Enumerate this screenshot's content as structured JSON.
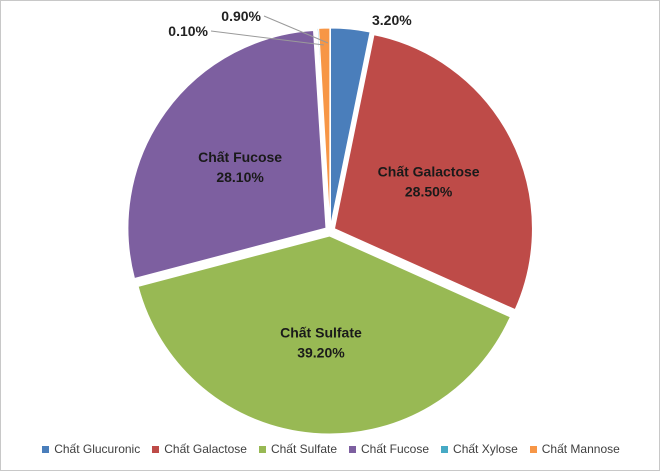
{
  "chart_data": {
    "type": "pie",
    "title": "",
    "categories": [
      "Chất Glucuronic",
      "Chất Galactose",
      "Chất Sulfate",
      "Chất Fucose",
      "Chất Xylose",
      "Chất Mannose"
    ],
    "values": [
      3.2,
      28.5,
      39.2,
      28.1,
      0.1,
      0.9
    ],
    "data_labels": [
      "3.20%",
      "28.50%",
      "39.20%",
      "28.10%",
      "0.10%",
      "0.90%"
    ],
    "colors": [
      "#4a7ebb",
      "#be4b48",
      "#98b954",
      "#7d5fa0",
      "#46aac5",
      "#f79646"
    ],
    "start_angle_deg": 0,
    "direction": "clockwise",
    "legend_position": "bottom",
    "inside_labels": [
      {
        "index": 1,
        "name": "Chất Galactose",
        "value": "28.50%"
      },
      {
        "index": 2,
        "name": "Chất Sulfate",
        "value": "39.20%"
      },
      {
        "index": 3,
        "name": "Chất Fucose",
        "value": "28.10%"
      }
    ],
    "outside_labels": [
      {
        "index": 0,
        "value": "3.20%"
      },
      {
        "index": 4,
        "value": "0.10%"
      },
      {
        "index": 5,
        "value": "0.90%"
      }
    ]
  }
}
